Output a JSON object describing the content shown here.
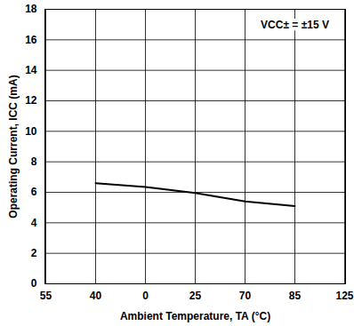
{
  "chart_data": {
    "type": "line",
    "x_label": "Ambient Temperature, TA (°C)",
    "y_label": "Operating Current, ICC (mA)",
    "annotation": "VCC± = ±15 V",
    "categories": [
      "55",
      "40",
      "0",
      "25",
      "70",
      "85",
      "125"
    ],
    "series": [
      {
        "name": "ICC",
        "color": "#000000",
        "values": [
          null,
          6.6,
          6.35,
          5.95,
          5.4,
          5.1,
          null
        ]
      }
    ],
    "ylim": [
      0,
      18
    ],
    "yticks": [
      0,
      2,
      4,
      6,
      8,
      10,
      12,
      14,
      16,
      18
    ],
    "grid": true
  }
}
